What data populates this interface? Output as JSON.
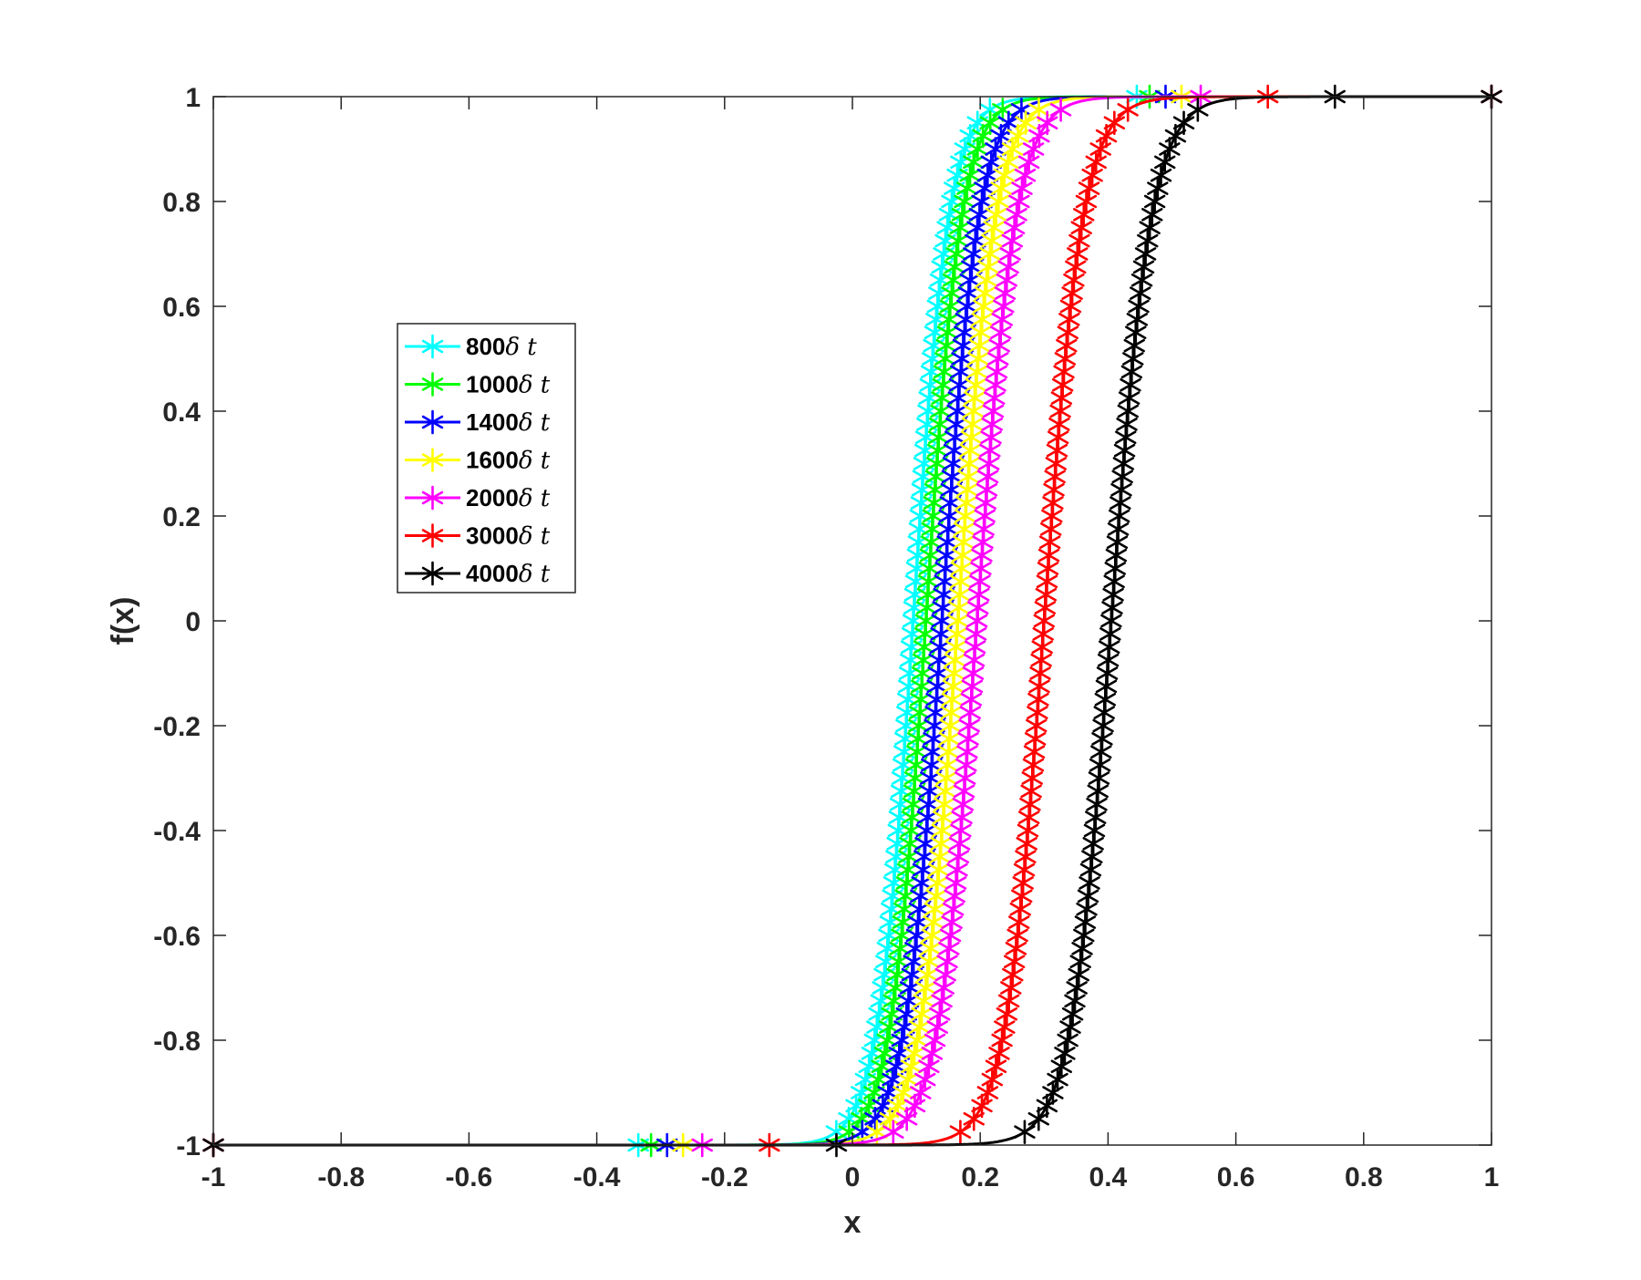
{
  "chart_data": {
    "type": "line",
    "xlabel": "x",
    "ylabel": "f(x)",
    "xlim": [
      -1,
      1
    ],
    "ylim": [
      -1,
      1
    ],
    "x_ticks": [
      "-1",
      "-0.8",
      "-0.6",
      "-0.4",
      "-0.2",
      "0",
      "0.2",
      "0.4",
      "0.6",
      "0.8",
      "1"
    ],
    "y_ticks": [
      "-1",
      "-0.8",
      "-0.6",
      "-0.4",
      "-0.2",
      "0",
      "0.2",
      "0.4",
      "0.6",
      "0.8",
      "1"
    ],
    "grid": false,
    "marker": "asterisk",
    "legend_position": "upper-left inside axes",
    "series": [
      {
        "name": "800",
        "legend_suffix": "δ t",
        "color": "#00ffff",
        "center": 0.095,
        "width": 0.055
      },
      {
        "name": "1000",
        "legend_suffix": "δ t",
        "color": "#00ff00",
        "center": 0.115,
        "width": 0.055
      },
      {
        "name": "1400",
        "legend_suffix": "δ t",
        "color": "#0000ff",
        "center": 0.14,
        "width": 0.057
      },
      {
        "name": "1600",
        "legend_suffix": "δ t",
        "color": "#ffff00",
        "center": 0.165,
        "width": 0.058
      },
      {
        "name": "2000",
        "legend_suffix": "δ t",
        "color": "#ff00ff",
        "center": 0.195,
        "width": 0.06
      },
      {
        "name": "3000",
        "legend_suffix": "δ t",
        "color": "#ff0000",
        "center": 0.3,
        "width": 0.06
      },
      {
        "name": "4000",
        "legend_suffix": "δ t",
        "color": "#000000",
        "center": 0.405,
        "width": 0.062
      }
    ]
  }
}
